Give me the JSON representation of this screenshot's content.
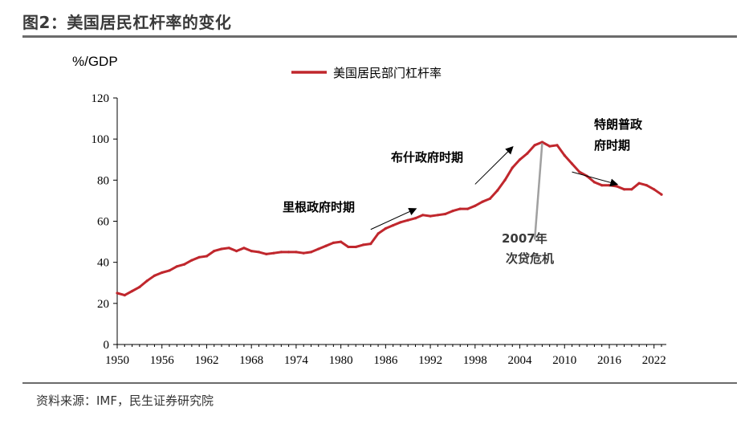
{
  "header": {
    "title": "图2：美国居民杠杆率的变化"
  },
  "footer": {
    "source": "资料来源：IMF，民生证券研究院"
  },
  "colors": {
    "series": "#c0272d",
    "axis": "#000000",
    "rule": "#6b6b6b",
    "crisis_line": "#a0a0a0"
  },
  "chart_data": {
    "type": "line",
    "unit_label": "%/GDP",
    "ylim": [
      0,
      120
    ],
    "yticks": [
      0,
      20,
      40,
      60,
      80,
      100,
      120
    ],
    "xlim": [
      1950,
      2023
    ],
    "xticks": [
      1950,
      1956,
      1962,
      1968,
      1974,
      1980,
      1986,
      1992,
      1998,
      2004,
      2010,
      2016,
      2022
    ],
    "grid": false,
    "legend_position": "top-center",
    "series": [
      {
        "name": "美国居民部门杠杆率",
        "color": "#c0272d",
        "x": [
          1950,
          1951,
          1952,
          1953,
          1954,
          1955,
          1956,
          1957,
          1958,
          1959,
          1960,
          1961,
          1962,
          1963,
          1964,
          1965,
          1966,
          1967,
          1968,
          1969,
          1970,
          1971,
          1972,
          1973,
          1974,
          1975,
          1976,
          1977,
          1978,
          1979,
          1980,
          1981,
          1982,
          1983,
          1984,
          1985,
          1986,
          1987,
          1988,
          1989,
          1990,
          1991,
          1992,
          1993,
          1994,
          1995,
          1996,
          1997,
          1998,
          1999,
          2000,
          2001,
          2002,
          2003,
          2004,
          2005,
          2006,
          2007,
          2008,
          2009,
          2010,
          2011,
          2012,
          2013,
          2014,
          2015,
          2016,
          2017,
          2018,
          2019,
          2020,
          2021,
          2022,
          2023
        ],
        "values": [
          25,
          24,
          26,
          28,
          31,
          33.5,
          35,
          36,
          38,
          39,
          41,
          42.5,
          43,
          45.5,
          46.5,
          47,
          45.5,
          47,
          45.5,
          45,
          44,
          44.5,
          45,
          45,
          45,
          44.5,
          45,
          46.5,
          48,
          49.5,
          50,
          47.5,
          47.5,
          48.5,
          49,
          54,
          56.5,
          58,
          59.5,
          60.5,
          61.5,
          63,
          62.5,
          63,
          63.5,
          65,
          66,
          66,
          67.5,
          69.5,
          71,
          75,
          80,
          86,
          90,
          93,
          97,
          98.5,
          96.5,
          97,
          92,
          88,
          84,
          82,
          79,
          77.5,
          77.5,
          77,
          75.5,
          75.5,
          78.5,
          77.5,
          75.5,
          73
        ]
      }
    ],
    "annotations": [
      {
        "text": "里根政府时期",
        "arrow_from": [
          1984,
          56
        ],
        "arrow_to": [
          1990,
          66
        ]
      },
      {
        "text": "布什政府时期",
        "arrow_from": [
          1998,
          78
        ],
        "arrow_to": [
          2003,
          96
        ]
      },
      {
        "text_lines": [
          "2007年",
          "次贷危机"
        ],
        "pointer_from": [
          2006,
          51
        ],
        "pointer_to": [
          2007,
          98
        ]
      },
      {
        "text_lines": [
          "特朗普政",
          "府时期"
        ],
        "arrow_from": [
          2011,
          84
        ],
        "arrow_to": [
          2017,
          78
        ]
      }
    ]
  }
}
